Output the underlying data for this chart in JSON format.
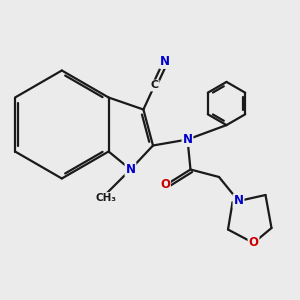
{
  "bg_color": "#ebebeb",
  "atom_color_C": "#1a1a1a",
  "atom_color_N": "#0000cc",
  "atom_color_O": "#cc0000",
  "line_color": "#1a1a1a",
  "line_width": 1.6,
  "fig_size": [
    3.0,
    3.0
  ],
  "dpi": 100,
  "xlim": [
    0,
    10
  ],
  "ylim": [
    0,
    10
  ]
}
